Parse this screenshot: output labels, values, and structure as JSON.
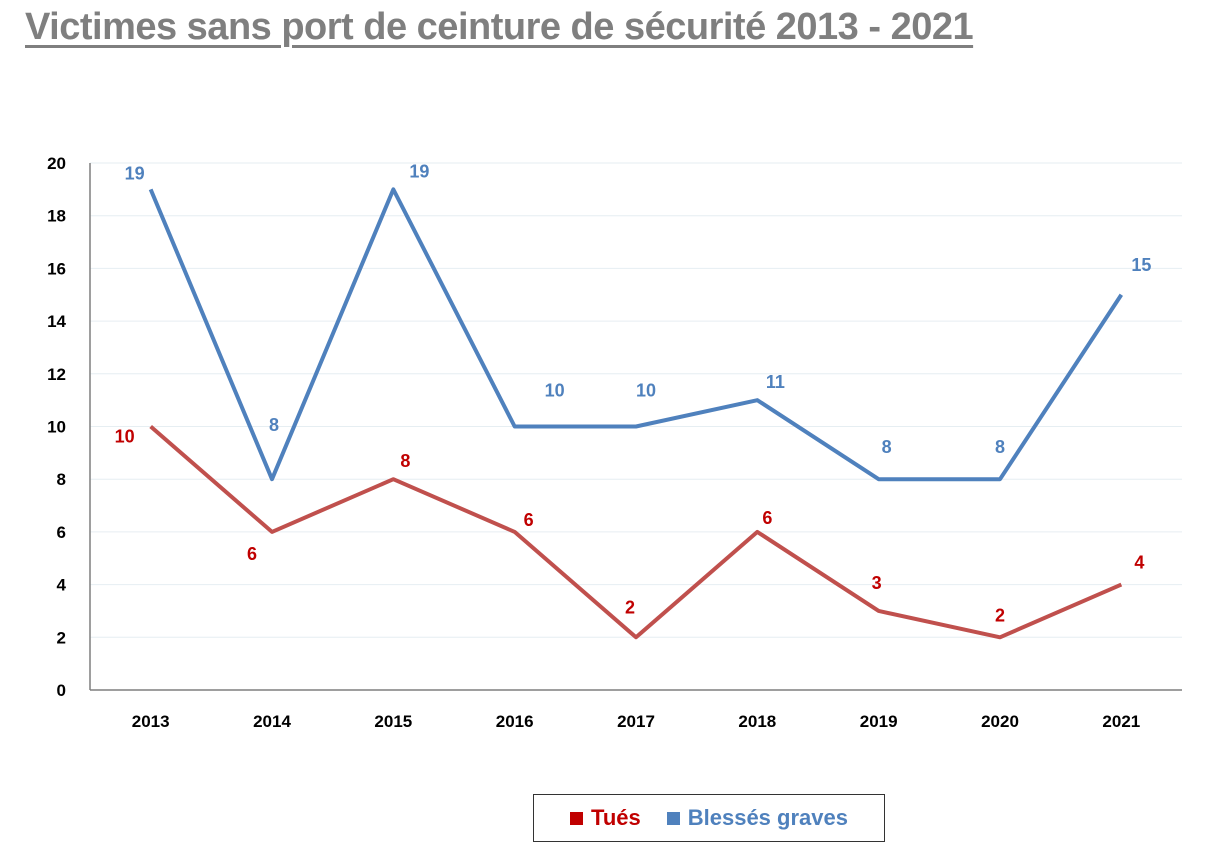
{
  "chart_data": {
    "type": "line",
    "title": "Victimes sans port de ceinture de sécurité 2013 - 2021",
    "xlabel": "",
    "ylabel": "",
    "ylim": [
      0,
      20
    ],
    "yticks": [
      "0",
      "2",
      "4",
      "6",
      "8",
      "10",
      "12",
      "14",
      "16",
      "18",
      "20"
    ],
    "categories": [
      "2013",
      "2014",
      "2015",
      "2016",
      "2017",
      "2018",
      "2019",
      "2020",
      "2021"
    ],
    "grid": true,
    "legend_position": "bottom",
    "series": [
      {
        "name": "Tués",
        "color": "#c0504d",
        "label_color": "#c00000",
        "values": [
          10,
          6,
          8,
          6,
          2,
          6,
          3,
          2,
          4
        ]
      },
      {
        "name": "Blessés graves",
        "color": "#4f81bd",
        "label_color": "#4f81bd",
        "values": [
          19,
          8,
          19,
          10,
          10,
          11,
          8,
          8,
          15
        ]
      }
    ]
  }
}
